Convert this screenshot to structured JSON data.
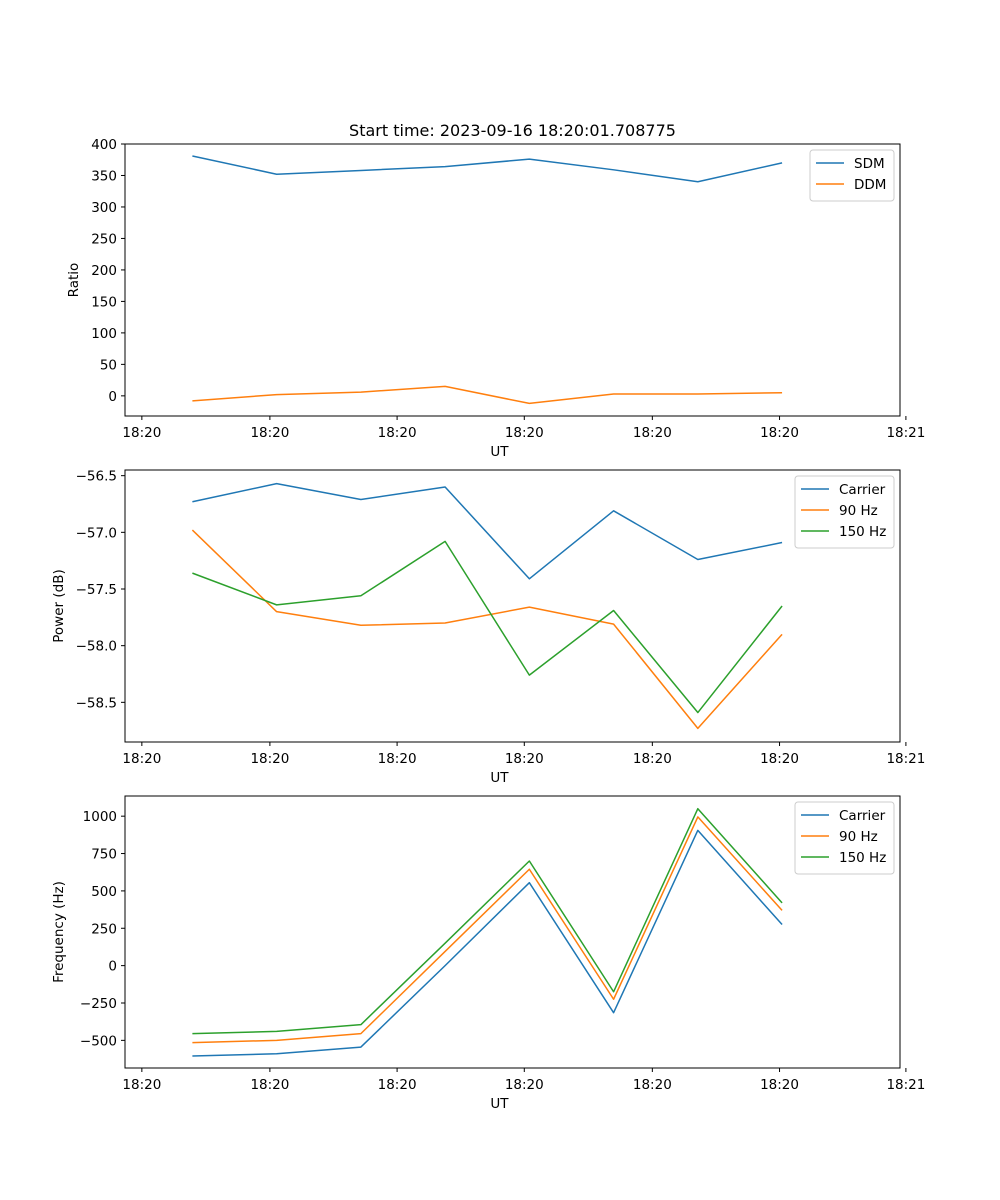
{
  "figure": {
    "title": "Start time: 2023-09-16 18:20:01.708775"
  },
  "chart_data": [
    {
      "type": "line",
      "title": "Start time: 2023-09-16 18:20:01.708775",
      "xlabel": "UT",
      "ylabel": "Ratio",
      "x": [
        1,
        2,
        3,
        4,
        5,
        6,
        7,
        8
      ],
      "xlim": [
        0.2,
        9.4
      ],
      "xticks": [
        {
          "v": 0.4,
          "label": "18:20"
        },
        {
          "v": 1.92,
          "label": "18:20"
        },
        {
          "v": 3.43,
          "label": "18:20"
        },
        {
          "v": 4.94,
          "label": "18:20"
        },
        {
          "v": 6.46,
          "label": "18:20"
        },
        {
          "v": 7.97,
          "label": "18:20"
        },
        {
          "v": 9.47,
          "label": "18:21"
        }
      ],
      "ylim": [
        -32,
        400
      ],
      "yticks": [
        0,
        50,
        100,
        150,
        200,
        250,
        300,
        350,
        400
      ],
      "legend": "top-right",
      "series": [
        {
          "name": "SDM",
          "color": "#1f77b4",
          "values": [
            381,
            352,
            358,
            364,
            376,
            359,
            340,
            370
          ]
        },
        {
          "name": "DDM",
          "color": "#ff7f0e",
          "values": [
            -8,
            2,
            6,
            15,
            -12,
            3,
            3,
            5
          ]
        }
      ]
    },
    {
      "type": "line",
      "xlabel": "UT",
      "ylabel": "Power (dB)",
      "x": [
        1,
        2,
        3,
        4,
        5,
        6,
        7,
        8
      ],
      "xlim": [
        0.2,
        9.4
      ],
      "xticks": [
        {
          "v": 0.4,
          "label": "18:20"
        },
        {
          "v": 1.92,
          "label": "18:20"
        },
        {
          "v": 3.43,
          "label": "18:20"
        },
        {
          "v": 4.94,
          "label": "18:20"
        },
        {
          "v": 6.46,
          "label": "18:20"
        },
        {
          "v": 7.97,
          "label": "18:20"
        },
        {
          "v": 9.47,
          "label": "18:21"
        }
      ],
      "ylim": [
        -58.85,
        -56.45
      ],
      "yticks": [
        {
          "v": -56.5,
          "label": "−56.5"
        },
        {
          "v": -57.0,
          "label": "−57.0"
        },
        {
          "v": -57.5,
          "label": "−57.5"
        },
        {
          "v": -58.0,
          "label": "−58.0"
        },
        {
          "v": -58.5,
          "label": "−58.5"
        }
      ],
      "legend": "top-right",
      "series": [
        {
          "name": "Carrier",
          "color": "#1f77b4",
          "values": [
            -56.73,
            -56.57,
            -56.71,
            -56.6,
            -57.41,
            -56.81,
            -57.24,
            -57.09
          ]
        },
        {
          "name": "90 Hz",
          "color": "#ff7f0e",
          "values": [
            -56.98,
            -57.7,
            -57.82,
            -57.8,
            -57.66,
            -57.81,
            -58.73,
            -57.9
          ]
        },
        {
          "name": "150 Hz",
          "color": "#2ca02c",
          "values": [
            -57.36,
            -57.64,
            -57.56,
            -57.08,
            -58.26,
            -57.69,
            -58.59,
            -57.65
          ]
        }
      ]
    },
    {
      "type": "line",
      "xlabel": "UT",
      "ylabel": "Frequency (Hz)",
      "x": [
        1,
        2,
        3,
        4,
        5,
        6,
        7,
        8
      ],
      "xlim": [
        0.2,
        9.4
      ],
      "xticks": [
        {
          "v": 0.4,
          "label": "18:20"
        },
        {
          "v": 1.92,
          "label": "18:20"
        },
        {
          "v": 3.43,
          "label": "18:20"
        },
        {
          "v": 4.94,
          "label": "18:20"
        },
        {
          "v": 6.46,
          "label": "18:20"
        },
        {
          "v": 7.97,
          "label": "18:20"
        },
        {
          "v": 9.47,
          "label": "18:21"
        }
      ],
      "ylim": [
        -685,
        1135
      ],
      "yticks": [
        {
          "v": 1000,
          "label": "1000"
        },
        {
          "v": 750,
          "label": "750"
        },
        {
          "v": 500,
          "label": "500"
        },
        {
          "v": 250,
          "label": "250"
        },
        {
          "v": 0,
          "label": "0"
        },
        {
          "v": -250,
          "label": "−250"
        },
        {
          "v": -500,
          "label": "−500"
        }
      ],
      "legend": "top-right",
      "series": [
        {
          "name": "Carrier",
          "color": "#1f77b4",
          "values": [
            -605,
            -590,
            -545,
            0,
            555,
            -315,
            905,
            275
          ]
        },
        {
          "name": "90 Hz",
          "color": "#ff7f0e",
          "values": [
            -515,
            -500,
            -455,
            95,
            645,
            -225,
            995,
            370
          ]
        },
        {
          "name": "150 Hz",
          "color": "#2ca02c",
          "values": [
            -455,
            -440,
            -395,
            150,
            700,
            -175,
            1050,
            420
          ]
        }
      ]
    }
  ]
}
